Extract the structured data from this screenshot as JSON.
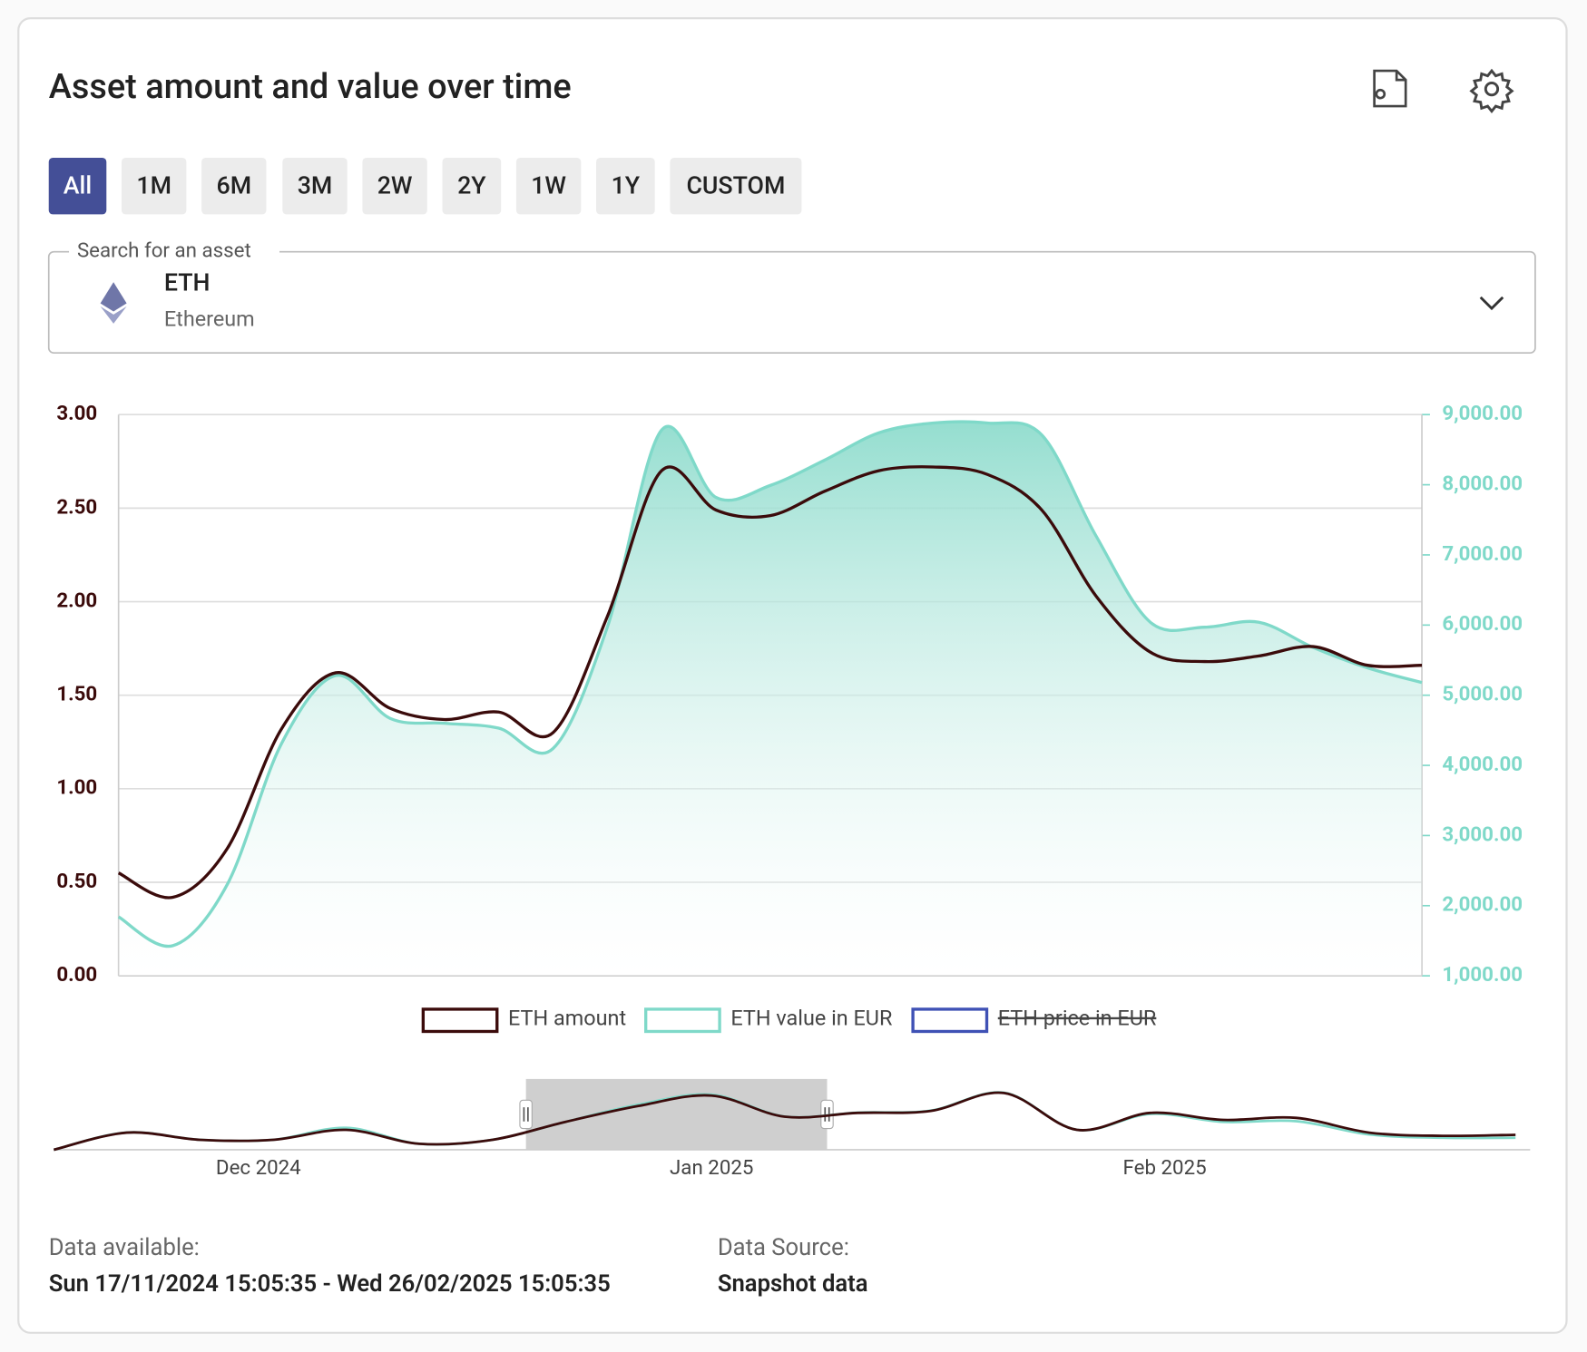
{
  "header": {
    "title": "Asset amount and value over time"
  },
  "range_buttons": [
    {
      "label": "All",
      "selected": true
    },
    {
      "label": "1M",
      "selected": false
    },
    {
      "label": "6M",
      "selected": false
    },
    {
      "label": "3M",
      "selected": false
    },
    {
      "label": "2W",
      "selected": false
    },
    {
      "label": "2Y",
      "selected": false
    },
    {
      "label": "1W",
      "selected": false
    },
    {
      "label": "1Y",
      "selected": false
    },
    {
      "label": "CUSTOM",
      "selected": false
    }
  ],
  "search": {
    "label": "Search for an asset",
    "symbol": "ETH",
    "name": "Ethereum"
  },
  "chart_data": [
    {
      "type": "line",
      "ylim": [
        0,
        3
      ],
      "yticks": [
        {
          "value": 0,
          "label": "0.00"
        },
        {
          "value": 0.5,
          "label": "0.50"
        },
        {
          "value": 1,
          "label": "1.00"
        },
        {
          "value": 1.5,
          "label": "1.50"
        },
        {
          "value": 2,
          "label": "2.00"
        },
        {
          "value": 2.5,
          "label": "2.50"
        },
        {
          "value": 3,
          "label": "3.00"
        }
      ],
      "y2lim": [
        1000,
        9000
      ],
      "y2ticks": [
        {
          "value": 1000,
          "label": "1,000.00"
        },
        {
          "value": 2000,
          "label": "2,000.00"
        },
        {
          "value": 3000,
          "label": "3,000.00"
        },
        {
          "value": 4000,
          "label": "4,000.00"
        },
        {
          "value": 5000,
          "label": "5,000.00"
        },
        {
          "value": 6000,
          "label": "6,000.00"
        },
        {
          "value": 7000,
          "label": "7,000.00"
        },
        {
          "value": 8000,
          "label": "8,000.00"
        },
        {
          "value": 9000,
          "label": "9,000.00"
        }
      ],
      "grid": true,
      "series": [
        {
          "name": "ETH amount",
          "color": "#3b0b0b",
          "values": [
            0.55,
            0.42,
            0.68,
            1.32,
            1.62,
            1.43,
            1.37,
            1.41,
            1.3,
            1.92,
            2.7,
            2.49,
            2.46,
            2.59,
            2.7,
            2.72,
            2.68,
            2.49,
            2.03,
            1.73,
            1.68,
            1.71,
            1.76,
            1.66,
            1.66
          ]
        },
        {
          "name": "ETH value in EUR",
          "color": "#7fd9c9",
          "axis": "y2",
          "area": true,
          "values": [
            1840,
            1430,
            2300,
            4310,
            5280,
            4670,
            4600,
            4530,
            4240,
            5970,
            8780,
            7820,
            7990,
            8350,
            8740,
            8880,
            8880,
            8710,
            7270,
            6040,
            5970,
            6040,
            5680,
            5390,
            5180
          ]
        },
        {
          "name": "ETH price in EUR",
          "color": "#3f51b5",
          "hidden": true
        }
      ]
    },
    {
      "type": "line",
      "xlim": [
        0,
        101
      ],
      "x": [
        0,
        5,
        10,
        15,
        20,
        25,
        30,
        35,
        40,
        45,
        50,
        55,
        60,
        65,
        70,
        75,
        80,
        85,
        90,
        95,
        100
      ],
      "xticks": [
        {
          "value": 14,
          "label": "Dec 2024"
        },
        {
          "value": 45,
          "label": "Jan 2025"
        },
        {
          "value": 76,
          "label": "Feb 2025"
        }
      ],
      "ylim": [
        0,
        3.3
      ],
      "y2lim": [
        0,
        9900
      ],
      "selection": [
        32.3,
        52.9
      ],
      "series": [
        {
          "name": "ETH amount",
          "color": "#3b0b0b",
          "values": [
            0,
            0.86,
            0.5,
            0.5,
            1.0,
            0.3,
            0.5,
            1.4,
            2.2,
            2.72,
            1.66,
            1.85,
            1.95,
            2.85,
            1.0,
            1.85,
            1.5,
            1.6,
            0.86,
            0.7,
            0.75
          ]
        },
        {
          "name": "ETH value in EUR",
          "color": "#7fd9c9",
          "axis": "y2",
          "values": [
            0,
            2600,
            1500,
            1500,
            3300,
            900,
            1500,
            4200,
            6800,
            8300,
            5000,
            5600,
            5900,
            8600,
            3000,
            5400,
            4200,
            4300,
            2300,
            1800,
            1800
          ]
        }
      ]
    }
  ],
  "footer": {
    "available_label": "Data available:",
    "available_value": "Sun 17/11/2024 15:05:35 - Wed 26/02/2025 15:05:35",
    "source_label": "Data Source:",
    "source_value": "Snapshot data"
  }
}
